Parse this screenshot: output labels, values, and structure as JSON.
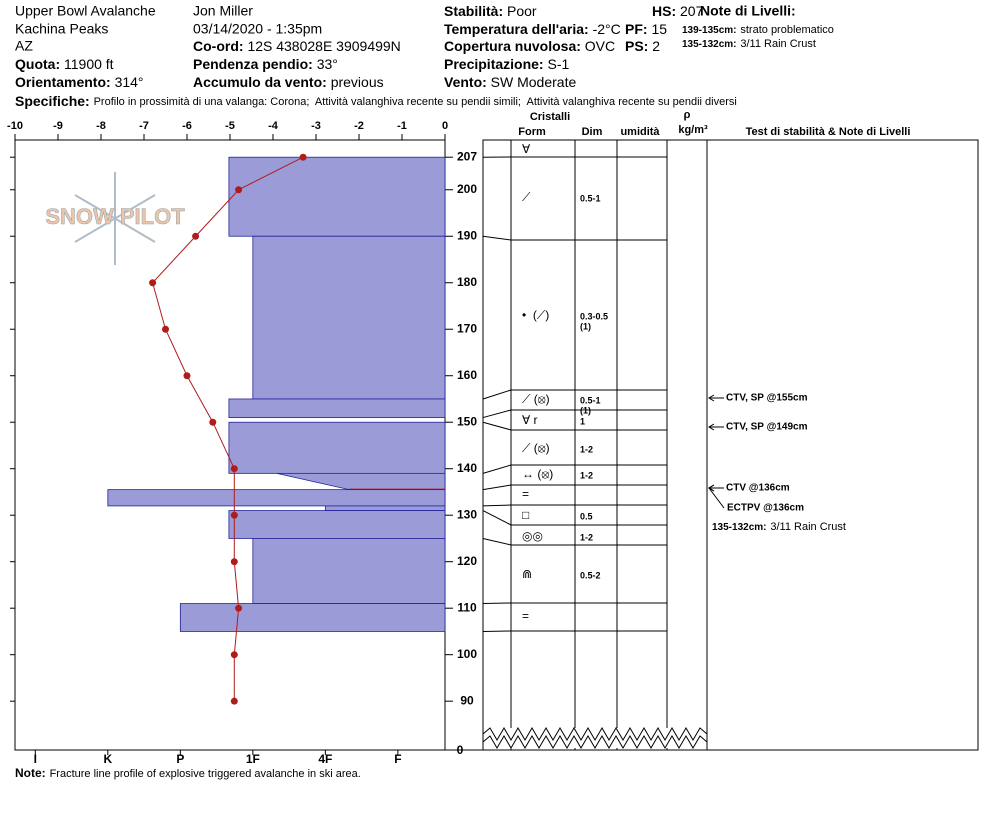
{
  "header": {
    "location": "Upper Bowl Avalanche",
    "area": "Kachina Peaks",
    "state": "AZ",
    "observer": "Jon Miller",
    "datetime": "03/14/2020 - 1:35pm",
    "fields": [
      {
        "label": "Quota:",
        "value": "11900 ft"
      },
      {
        "label": "Orientamento:",
        "value": "314°"
      },
      {
        "label": "Co-ord:",
        "value": "12S 438028E 3909499N"
      },
      {
        "label": "Pendenza pendio:",
        "value": "33°"
      },
      {
        "label": "Accumulo da vento:",
        "value": "previous"
      },
      {
        "label": "Stabilità:",
        "value": "Poor"
      },
      {
        "label": "Temperatura dell'aria:",
        "value": "-2°C"
      },
      {
        "label": "Copertura nuvolosa:",
        "value": "OVC"
      },
      {
        "label": "Precipitazione:",
        "value": "S-1"
      },
      {
        "label": "Vento:",
        "value": "SW Moderate"
      },
      {
        "label": "HS:",
        "value": "207"
      },
      {
        "label": "PF:",
        "value": "15"
      },
      {
        "label": "PS:",
        "value": "2"
      }
    ],
    "notes_title": "Note di Livelli:",
    "notes": [
      {
        "label": "139-135cm:",
        "value": "strato problematico"
      },
      {
        "label": "135-132cm:",
        "value": "3/11 Rain Crust"
      }
    ],
    "specifics": {
      "label": "Specifiche:",
      "value": "Profilo in prossimità di una valanga: Corona;  Attività valanghiva recente su pendii simili;  Attività valanghiva recente su pendii diversi"
    }
  },
  "chart_data": {
    "type": "snow-profile",
    "watermark": "SNOW PILOT",
    "xlim": [
      -10,
      0
    ],
    "xticks": [
      -10,
      -9,
      -8,
      -7,
      -6,
      -5,
      -4,
      -3,
      -2,
      -1,
      0
    ],
    "ylim": [
      79.5,
      210.7
    ],
    "yticks": [
      90,
      100,
      110,
      120,
      130,
      140,
      150,
      160,
      170,
      180,
      190,
      200,
      207
    ],
    "ybreak_label": 0,
    "hardness_lim": [
      6.28,
      0.35
    ],
    "hardness_ticks": [
      {
        "value": 6,
        "label": "I"
      },
      {
        "value": 5,
        "label": "K"
      },
      {
        "value": 4,
        "label": "P"
      },
      {
        "value": 3,
        "label": "1F"
      },
      {
        "value": 2,
        "label": "4F"
      },
      {
        "value": 1,
        "label": "F"
      }
    ],
    "layer_color": "#9b9bd8",
    "temp_color": "#b01c1c",
    "layers": [
      {
        "top": 207,
        "bottom": 190,
        "hardness": 3.33
      },
      {
        "top": 190,
        "bottom": 155,
        "hardness": 3
      },
      {
        "top": 155,
        "bottom": 151,
        "hardness": 3.33
      },
      {
        "top": 150,
        "bottom": 139,
        "hardness": 3.33
      },
      {
        "top": 139,
        "bottom": 135.5,
        "hardness_top": 2.67,
        "hardness_bottom": 1.67
      },
      {
        "top": 135.5,
        "bottom": 132,
        "hardness": 5
      },
      {
        "top": 132,
        "bottom": 131,
        "hardness": 2
      },
      {
        "top": 131,
        "bottom": 125,
        "hardness": 3.33
      },
      {
        "top": 125,
        "bottom": 111,
        "hardness": 3
      },
      {
        "top": 111,
        "bottom": 105,
        "hardness": 4
      }
    ],
    "temperature": {
      "heights": [
        207,
        200,
        190,
        180,
        170,
        160,
        150,
        140,
        130,
        120,
        110,
        100,
        90
      ],
      "values": [
        -3.3,
        -4.8,
        -5.8,
        -6.8,
        -6.5,
        -6.0,
        -5.4,
        -4.9,
        -4.9,
        -4.9,
        -4.8,
        -4.9,
        -4.9
      ]
    },
    "columns": {
      "crystals": "Cristalli",
      "form": "Form",
      "dim": "Dim",
      "moisture": "umidità",
      "rho": "ρ",
      "density": "kg/m³",
      "tests": "Test di stabilità & Note di Livelli"
    },
    "descriptions": [
      {
        "form": "∀",
        "dim": []
      },
      {
        "form": "⟋",
        "dim": [
          "0.5-1"
        ]
      },
      {
        "form": "•  (⟋)",
        "dim": [
          "0.3-0.5",
          "(1)"
        ]
      },
      {
        "form": "⟋ (⦻)",
        "dim": [
          "0.5-1",
          "(1)"
        ]
      },
      {
        "form": "∀ r",
        "dim": [
          "1"
        ]
      },
      {
        "form": "⟋ (⦻)",
        "dim": [
          "1-2"
        ]
      },
      {
        "form": "↔ (⦻)",
        "dim": [
          "1-2"
        ]
      },
      {
        "form": "=",
        "dim": []
      },
      {
        "form": "□",
        "dim": [
          "0.5"
        ]
      },
      {
        "form": "◎◎",
        "dim": [
          "1-2"
        ]
      },
      {
        "form": "⋒",
        "dim": [
          "0.5-2"
        ]
      },
      {
        "form": "=",
        "dim": []
      }
    ],
    "tests": [
      "CTV, SP @155cm",
      "CTV, SP @149cm",
      "CTV @136cm",
      "ECTPV @136cm"
    ],
    "layer_note": {
      "label": "135-132cm:",
      "value": "3/11 Rain Crust"
    }
  },
  "footer": {
    "label": "Note:",
    "value": "Fracture line profile of explosive triggered avalanche in ski area."
  }
}
